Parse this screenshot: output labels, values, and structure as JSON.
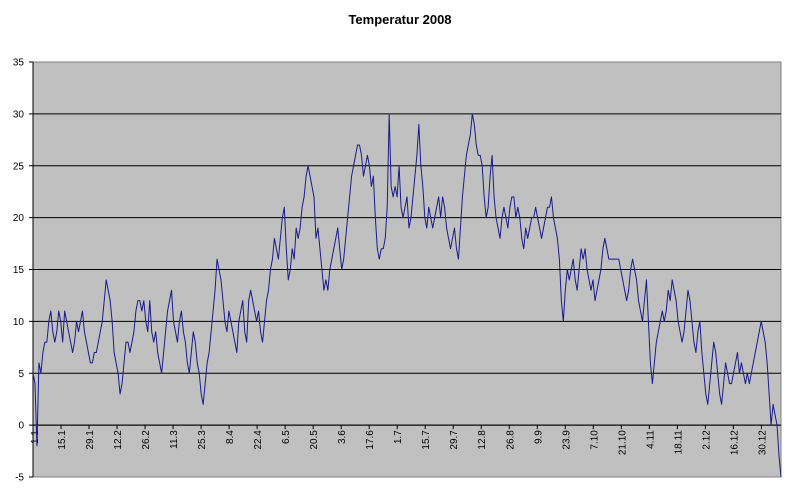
{
  "chart_data": {
    "type": "line",
    "title": "Temperatur 2008",
    "xlabel": "",
    "ylabel": "",
    "ylim": [
      -5,
      35
    ],
    "yticks": [
      -5,
      0,
      5,
      10,
      15,
      20,
      25,
      30,
      35
    ],
    "grid": "horizontal",
    "legend": "none",
    "colors": {
      "plot_bg": "#c0c0c0",
      "line": "#1a1a8c",
      "grid": "#000000"
    },
    "xticks": [
      "1.1",
      "15.1",
      "29.1",
      "12.2",
      "26.2",
      "11.3",
      "25.3",
      "8.4",
      "22.4",
      "6.5",
      "20.5",
      "3.6",
      "17.6",
      "1.7",
      "15.7",
      "29.7",
      "12.8",
      "26.8",
      "9.9",
      "23.9",
      "7.10",
      "21.10",
      "4.11",
      "18.11",
      "2.12",
      "16.12",
      "30.12"
    ],
    "series": [
      {
        "values": [
          5,
          4,
          -2,
          6,
          5,
          7,
          8,
          8,
          10,
          11,
          9,
          8,
          9,
          11,
          10,
          8,
          11,
          10,
          9,
          8,
          7,
          8,
          10,
          9,
          10,
          11,
          9,
          8,
          7,
          6,
          6,
          7,
          7,
          8,
          9,
          10,
          12,
          14,
          13,
          12,
          10,
          7,
          6,
          5,
          3,
          4,
          6,
          8,
          8,
          7,
          8,
          9,
          11,
          12,
          12,
          11,
          12,
          10,
          9,
          12,
          9,
          8,
          9,
          7,
          6,
          5,
          7,
          9,
          11,
          12,
          13,
          10,
          9,
          8,
          10,
          11,
          9,
          8,
          6,
          5,
          7,
          9,
          8,
          6,
          5,
          3,
          2,
          4,
          6,
          7,
          9,
          11,
          13,
          16,
          15,
          14,
          12,
          10,
          9,
          11,
          10,
          9,
          8,
          7,
          10,
          11,
          12,
          9,
          8,
          12,
          13,
          12,
          11,
          10,
          11,
          9,
          8,
          10,
          12,
          13,
          15,
          16,
          18,
          17,
          16,
          18,
          20,
          21,
          17,
          14,
          15,
          17,
          16,
          19,
          18,
          19,
          21,
          22,
          24,
          25,
          24,
          23,
          22,
          18,
          19,
          17,
          15,
          13,
          14,
          13,
          15,
          16,
          17,
          18,
          19,
          17,
          15,
          16,
          18,
          20,
          22,
          24,
          25,
          26,
          27,
          27,
          26,
          24,
          25,
          26,
          25,
          23,
          24,
          20,
          17,
          16,
          17,
          17,
          18,
          21,
          30,
          23,
          22,
          23,
          22,
          25,
          21,
          20,
          21,
          22,
          19,
          20,
          22,
          24,
          26,
          29,
          25,
          23,
          20,
          19,
          21,
          20,
          19,
          20,
          21,
          22,
          20,
          22,
          21,
          19,
          18,
          17,
          18,
          19,
          17,
          16,
          19,
          22,
          24,
          26,
          27,
          28,
          30,
          29,
          27,
          26,
          26,
          25,
          22,
          20,
          21,
          24,
          26,
          22,
          20,
          19,
          18,
          20,
          21,
          20,
          19,
          21,
          22,
          22,
          20,
          21,
          20,
          18,
          17,
          19,
          18,
          19,
          20,
          20,
          21,
          20,
          19,
          18,
          19,
          20,
          21,
          21,
          22,
          20,
          19,
          18,
          16,
          12,
          10,
          13,
          15,
          14,
          15,
          16,
          14,
          13,
          15,
          17,
          16,
          17,
          15,
          14,
          13,
          14,
          12,
          13,
          14,
          15,
          17,
          18,
          17,
          16,
          16,
          16,
          16,
          16,
          16,
          15,
          14,
          13,
          12,
          13,
          15,
          16,
          15,
          14,
          12,
          11,
          10,
          12,
          14,
          10,
          6,
          4,
          6,
          8,
          9,
          10,
          11,
          10,
          11,
          13,
          12,
          14,
          13,
          12,
          10,
          9,
          8,
          9,
          11,
          13,
          12,
          10,
          8,
          7,
          9,
          10,
          7,
          5,
          3,
          2,
          4,
          6,
          8,
          7,
          5,
          3,
          2,
          4,
          6,
          5,
          4,
          4,
          5,
          6,
          7,
          5,
          6,
          5,
          4,
          5,
          4,
          5,
          6,
          7,
          8,
          9,
          10,
          9,
          8,
          6,
          3,
          0,
          2,
          1,
          0,
          -3,
          -5
        ]
      }
    ]
  }
}
